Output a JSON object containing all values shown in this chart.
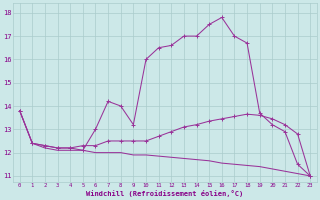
{
  "xlabel": "Windchill (Refroidissement éolien,°C)",
  "x_hours": [
    0,
    1,
    2,
    3,
    4,
    5,
    6,
    7,
    8,
    9,
    10,
    11,
    12,
    13,
    14,
    15,
    16,
    17,
    18,
    19,
    20,
    21,
    22,
    23
  ],
  "line1": [
    13.8,
    12.4,
    12.3,
    12.2,
    12.2,
    12.1,
    13.0,
    14.2,
    14.0,
    13.2,
    16.0,
    16.5,
    16.6,
    17.0,
    17.0,
    17.5,
    17.8,
    17.0,
    16.7,
    13.7,
    13.2,
    12.9,
    11.5,
    11.0
  ],
  "line2": [
    13.8,
    12.4,
    12.3,
    12.2,
    12.2,
    12.3,
    12.3,
    12.5,
    12.5,
    12.5,
    12.5,
    12.7,
    12.9,
    13.1,
    13.2,
    13.35,
    13.45,
    13.55,
    13.65,
    13.6,
    13.45,
    13.2,
    12.8,
    11.0
  ],
  "line3": [
    13.8,
    12.4,
    12.2,
    12.1,
    12.1,
    12.1,
    12.0,
    12.0,
    12.0,
    11.9,
    11.9,
    11.85,
    11.8,
    11.75,
    11.7,
    11.65,
    11.55,
    11.5,
    11.45,
    11.4,
    11.3,
    11.2,
    11.1,
    11.0
  ],
  "line_color": "#993399",
  "bg_color": "#cce8e8",
  "grid_color": "#aacccc",
  "text_color": "#880088",
  "ylim": [
    10.75,
    18.4
  ],
  "yticks": [
    11,
    12,
    13,
    14,
    15,
    16,
    17,
    18
  ],
  "marker_size": 2.5,
  "line_width": 0.75
}
